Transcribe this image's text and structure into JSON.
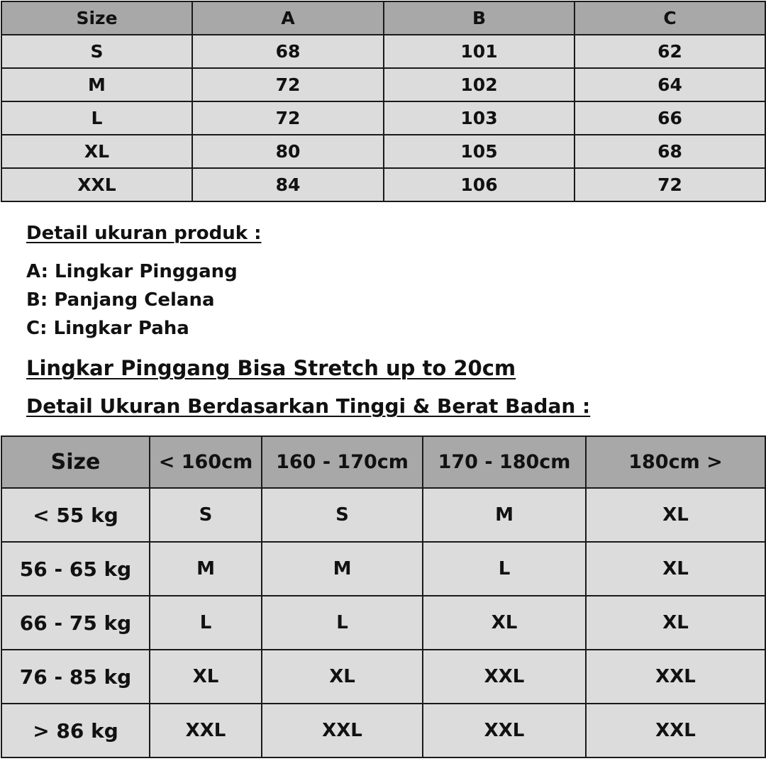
{
  "measurement_table": {
    "headers": [
      "Size",
      "A",
      "B",
      "C"
    ],
    "rows": [
      [
        "S",
        "68",
        "101",
        "62"
      ],
      [
        "M",
        "72",
        "102",
        "64"
      ],
      [
        "L",
        "72",
        "103",
        "66"
      ],
      [
        "XL",
        "80",
        "105",
        "68"
      ],
      [
        "XXL",
        "84",
        "106",
        "72"
      ]
    ]
  },
  "details": {
    "title": "Detail ukuran produk :",
    "items": [
      "A: Lingkar Pinggang",
      "B: Panjang Celana",
      "C: Lingkar Paha"
    ],
    "stretch_note": "Lingkar Pinggang Bisa Stretch up to 20cm",
    "recommendation_title": "Detail Ukuran Berdasarkan Tinggi & Berat Badan :"
  },
  "recommendation_table": {
    "headers": [
      "Size",
      "< 160cm",
      "160 - 170cm",
      "170 - 180cm",
      "180cm >"
    ],
    "rows": [
      [
        "< 55 kg",
        "S",
        "S",
        "M",
        "XL"
      ],
      [
        "56 - 65 kg",
        "M",
        "M",
        "L",
        "XL"
      ],
      [
        "66 - 75 kg",
        "L",
        "L",
        "XL",
        "XL"
      ],
      [
        "76 - 85 kg",
        "XL",
        "XL",
        "XXL",
        "XXL"
      ],
      [
        "> 86 kg",
        "XXL",
        "XXL",
        "XXL",
        "XXL"
      ]
    ]
  },
  "colors": {
    "header_bg": "#a8a8a8",
    "cell_bg": "#dcdcdc",
    "border": "#1a1a1a"
  }
}
